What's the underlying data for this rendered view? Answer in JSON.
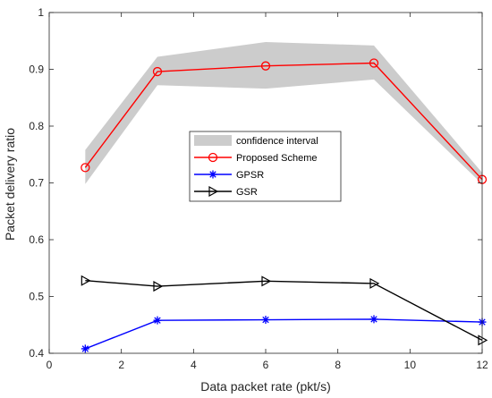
{
  "chart_data": {
    "type": "line",
    "xlabel": "Data packet rate (pkt/s)",
    "ylabel": "Packet delivery ratio",
    "xlim": [
      0,
      12
    ],
    "ylim": [
      0.4,
      1.0
    ],
    "x_ticks": [
      0,
      2,
      4,
      6,
      8,
      10,
      12
    ],
    "y_ticks": [
      0.4,
      0.5,
      0.6,
      0.7,
      0.8,
      0.9,
      1.0
    ],
    "x_tick_labels": [
      "0",
      "2",
      "4",
      "6",
      "8",
      "10",
      "12"
    ],
    "y_tick_labels": [
      "0.4",
      "0.5",
      "0.6",
      "0.7",
      "0.8",
      "0.9",
      "1"
    ],
    "grid": false,
    "legend_position": "center-right",
    "x": [
      1,
      3,
      6,
      9,
      12
    ],
    "confidence_interval": {
      "name": "confidence interval",
      "color": "#cccccc",
      "lower": [
        0.698,
        0.872,
        0.866,
        0.882,
        0.698
      ],
      "upper": [
        0.758,
        0.922,
        0.948,
        0.942,
        0.718
      ]
    },
    "series": [
      {
        "name": "Proposed Scheme",
        "color": "#ff0000",
        "marker": "circle",
        "values": [
          0.727,
          0.896,
          0.906,
          0.911,
          0.706
        ]
      },
      {
        "name": "GPSR",
        "color": "#0000ff",
        "marker": "star",
        "values": [
          0.408,
          0.458,
          0.459,
          0.46,
          0.455
        ]
      },
      {
        "name": "GSR",
        "color": "#000000",
        "marker": "triangle-right",
        "values": [
          0.528,
          0.518,
          0.527,
          0.523,
          0.423
        ]
      }
    ]
  }
}
